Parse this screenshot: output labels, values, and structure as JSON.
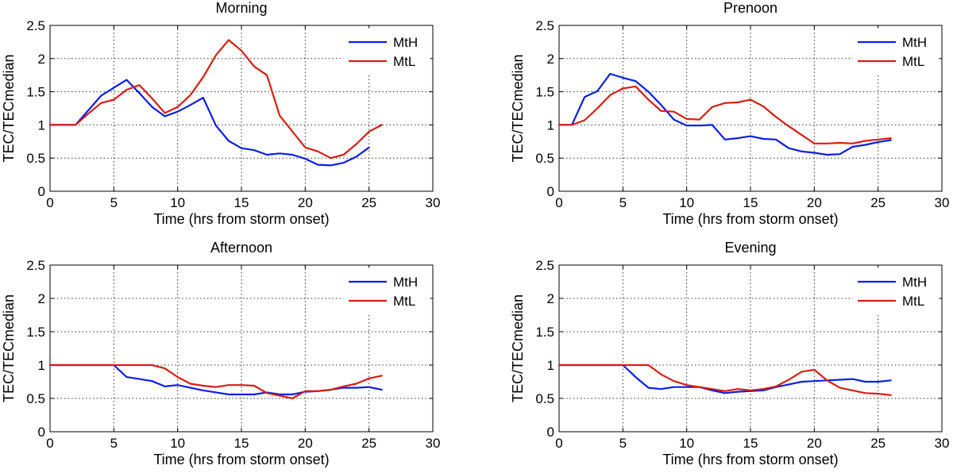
{
  "colors": {
    "MtH": "#0a1ee6",
    "MtL": "#d41f12"
  },
  "chart_data": [
    {
      "type": "line",
      "title": "Morning",
      "xlabel": "Time (hrs from storm onset)",
      "ylabel": "TEC/TECmedian",
      "xlim": [
        0,
        30
      ],
      "ylim": [
        0,
        2.5
      ],
      "xticks": [
        0,
        5,
        10,
        15,
        20,
        25,
        30
      ],
      "yticks": [
        0,
        0.5,
        1,
        1.5,
        2,
        2.5
      ],
      "xtick_labels": [
        "0",
        "5",
        "10",
        "15",
        "20",
        "25",
        "30"
      ],
      "ytick_labels": [
        "0",
        "0.5",
        "1",
        "1.5",
        "2",
        "2.5"
      ],
      "grid": true,
      "legend_position": "top-right",
      "series": [
        {
          "name": "MtH",
          "color": "#0a1ee6",
          "x": [
            0,
            1,
            2,
            3,
            4,
            5,
            6,
            7,
            8,
            9,
            10,
            11,
            12,
            13,
            14,
            15,
            16,
            17,
            18,
            19,
            20,
            21,
            22,
            23,
            24,
            25
          ],
          "y": [
            1,
            1,
            1,
            1.22,
            1.44,
            1.56,
            1.68,
            1.48,
            1.27,
            1.13,
            1.2,
            1.3,
            1.41,
            0.99,
            0.76,
            0.65,
            0.62,
            0.55,
            0.57,
            0.55,
            0.49,
            0.4,
            0.39,
            0.43,
            0.52,
            0.66
          ]
        },
        {
          "name": "MtL",
          "color": "#d41f12",
          "x": [
            0,
            1,
            2,
            3,
            4,
            5,
            6,
            7,
            8,
            9,
            10,
            11,
            12,
            13,
            14,
            15,
            16,
            17,
            18,
            19,
            20,
            21,
            22,
            23,
            24,
            25,
            26
          ],
          "y": [
            1,
            1,
            1,
            1.17,
            1.33,
            1.38,
            1.53,
            1.6,
            1.4,
            1.18,
            1.27,
            1.45,
            1.72,
            2.05,
            2.28,
            2.12,
            1.88,
            1.75,
            1.14,
            0.9,
            0.66,
            0.6,
            0.5,
            0.55,
            0.71,
            0.9,
            1
          ]
        }
      ]
    },
    {
      "type": "line",
      "title": "Prenoon",
      "xlabel": "Time (hrs from storm onset)",
      "ylabel": "TEC/TECmedian",
      "xlim": [
        0,
        30
      ],
      "ylim": [
        0,
        2.5
      ],
      "xticks": [
        0,
        5,
        10,
        15,
        20,
        25,
        30
      ],
      "yticks": [
        0,
        0.5,
        1,
        1.5,
        2,
        2.5
      ],
      "xtick_labels": [
        "0",
        "5",
        "10",
        "15",
        "20",
        "25",
        "30"
      ],
      "ytick_labels": [
        "0",
        "0.5",
        "1",
        "1.5",
        "2",
        "2.5"
      ],
      "grid": true,
      "legend_position": "top-right",
      "series": [
        {
          "name": "MtH",
          "color": "#0a1ee6",
          "x": [
            0,
            1,
            2,
            3,
            4,
            5,
            6,
            7,
            8,
            9,
            10,
            11,
            12,
            13,
            14,
            15,
            16,
            17,
            18,
            19,
            20,
            21,
            22,
            23,
            24,
            25,
            26
          ],
          "y": [
            1,
            1,
            1.42,
            1.51,
            1.77,
            1.71,
            1.66,
            1.5,
            1.3,
            1.08,
            0.99,
            0.99,
            1,
            0.78,
            0.8,
            0.83,
            0.79,
            0.78,
            0.65,
            0.6,
            0.58,
            0.55,
            0.56,
            0.67,
            0.7,
            0.74,
            0.77
          ]
        },
        {
          "name": "MtL",
          "color": "#d41f12",
          "x": [
            0,
            1,
            2,
            3,
            4,
            5,
            6,
            7,
            8,
            9,
            10,
            11,
            12,
            13,
            14,
            15,
            16,
            17,
            18,
            19,
            20,
            21,
            22,
            23,
            24,
            25,
            26
          ],
          "y": [
            1,
            1,
            1.07,
            1.25,
            1.45,
            1.55,
            1.58,
            1.38,
            1.21,
            1.2,
            1.09,
            1.08,
            1.27,
            1.33,
            1.34,
            1.38,
            1.28,
            1.12,
            0.98,
            0.85,
            0.72,
            0.72,
            0.73,
            0.72,
            0.76,
            0.78,
            0.8
          ]
        }
      ]
    },
    {
      "type": "line",
      "title": "Afternoon",
      "xlabel": "Time (hrs from storm onset)",
      "ylabel": "TEC/TECmedian",
      "xlim": [
        0,
        30
      ],
      "ylim": [
        0,
        2.5
      ],
      "xticks": [
        0,
        5,
        10,
        15,
        20,
        25,
        30
      ],
      "yticks": [
        0,
        0.5,
        1,
        1.5,
        2,
        2.5
      ],
      "xtick_labels": [
        "0",
        "5",
        "10",
        "15",
        "20",
        "25",
        "30"
      ],
      "ytick_labels": [
        "0",
        "0.5",
        "1",
        "1.5",
        "2",
        "2.5"
      ],
      "grid": true,
      "legend_position": "top-right",
      "series": [
        {
          "name": "MtH",
          "color": "#0a1ee6",
          "x": [
            0,
            1,
            2,
            3,
            4,
            5,
            6,
            7,
            8,
            9,
            10,
            11,
            12,
            13,
            14,
            15,
            16,
            17,
            18,
            19,
            20,
            21,
            22,
            23,
            24,
            25,
            26
          ],
          "y": [
            1,
            1,
            1,
            1,
            1,
            1,
            0.82,
            0.79,
            0.76,
            0.68,
            0.7,
            0.66,
            0.62,
            0.59,
            0.56,
            0.56,
            0.56,
            0.59,
            0.56,
            0.56,
            0.6,
            0.61,
            0.63,
            0.66,
            0.66,
            0.67,
            0.63
          ]
        },
        {
          "name": "MtL",
          "color": "#d41f12",
          "x": [
            0,
            1,
            2,
            3,
            4,
            5,
            6,
            7,
            8,
            9,
            10,
            11,
            12,
            13,
            14,
            15,
            16,
            17,
            18,
            19,
            20,
            21,
            22,
            23,
            24,
            25,
            26
          ],
          "y": [
            1,
            1,
            1,
            1,
            1,
            1,
            1,
            1,
            1,
            0.95,
            0.82,
            0.72,
            0.69,
            0.67,
            0.7,
            0.7,
            0.69,
            0.58,
            0.54,
            0.5,
            0.61,
            0.61,
            0.63,
            0.68,
            0.72,
            0.8,
            0.84
          ]
        }
      ]
    },
    {
      "type": "line",
      "title": "Evening",
      "xlabel": "Time (hrs from storm onset)",
      "ylabel": "TEC/TECmedian",
      "xlim": [
        0,
        30
      ],
      "ylim": [
        0,
        2.5
      ],
      "xticks": [
        0,
        5,
        10,
        15,
        20,
        25,
        30
      ],
      "yticks": [
        0,
        0.5,
        1,
        1.5,
        2,
        2.5
      ],
      "xtick_labels": [
        "0",
        "5",
        "10",
        "15",
        "20",
        "25",
        "30"
      ],
      "ytick_labels": [
        "0",
        "0.5",
        "1",
        "1.5",
        "2",
        "2.5"
      ],
      "grid": true,
      "legend_position": "top-right",
      "series": [
        {
          "name": "MtH",
          "color": "#0a1ee6",
          "x": [
            0,
            1,
            2,
            3,
            4,
            5,
            6,
            7,
            8,
            9,
            10,
            11,
            12,
            13,
            14,
            15,
            16,
            17,
            18,
            19,
            20,
            21,
            22,
            23,
            24,
            25,
            26
          ],
          "y": [
            1,
            1,
            1,
            1,
            1,
            1,
            0.82,
            0.66,
            0.64,
            0.67,
            0.67,
            0.67,
            0.62,
            0.58,
            0.6,
            0.61,
            0.62,
            0.67,
            0.71,
            0.75,
            0.76,
            0.77,
            0.78,
            0.79,
            0.75,
            0.75,
            0.77
          ]
        },
        {
          "name": "MtL",
          "color": "#d41f12",
          "x": [
            0,
            1,
            2,
            3,
            4,
            5,
            6,
            7,
            8,
            9,
            10,
            11,
            12,
            13,
            14,
            15,
            16,
            17,
            18,
            19,
            20,
            21,
            22,
            23,
            24,
            25,
            26
          ],
          "y": [
            1,
            1,
            1,
            1,
            1,
            1,
            1,
            1,
            0.86,
            0.76,
            0.7,
            0.67,
            0.64,
            0.61,
            0.64,
            0.62,
            0.64,
            0.68,
            0.78,
            0.9,
            0.93,
            0.77,
            0.66,
            0.62,
            0.58,
            0.57,
            0.55
          ]
        }
      ]
    }
  ]
}
